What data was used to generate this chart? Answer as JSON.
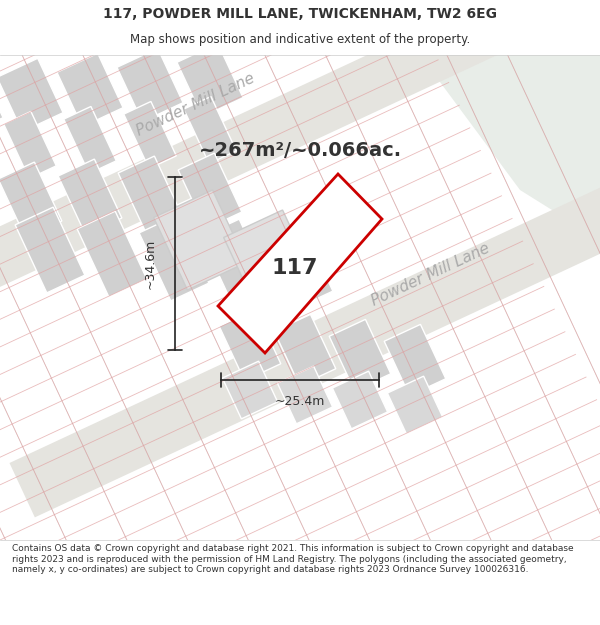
{
  "title_line1": "117, POWDER MILL LANE, TWICKENHAM, TW2 6EG",
  "title_line2": "Map shows position and indicative extent of the property.",
  "area_text": "~267m²/~0.066ac.",
  "label_117": "117",
  "dim_height": "~34.6m",
  "dim_width": "~25.4m",
  "road_label_upper": "Powder Mill Lane",
  "road_label_lower": "Powder Mill Lane",
  "footer_text": "Contains OS data © Crown copyright and database right 2021. This information is subject to Crown copyright and database rights 2023 and is reproduced with the permission of HM Land Registry. The polygons (including the associated geometry, namely x, y co-ordinates) are subject to Crown copyright and database rights 2023 Ordnance Survey 100026316.",
  "bg_color": "#f5f5f5",
  "map_bg": "#f0efef",
  "road_color_upper": "#e8e8e0",
  "road_color_lower": "#e8e8e0",
  "grid_line_color": "#e8c8c8",
  "block_color": "#d8d8d8",
  "highlight_block_color": "#e0e0e0",
  "green_area_color": "#e8ede8",
  "plot_outline_color": "#cc0000",
  "plot_fill_color": "#ffffff",
  "dimension_line_color": "#222222",
  "text_color_dark": "#333333",
  "text_color_gray": "#999999",
  "road_text_color": "#aaaaaa"
}
